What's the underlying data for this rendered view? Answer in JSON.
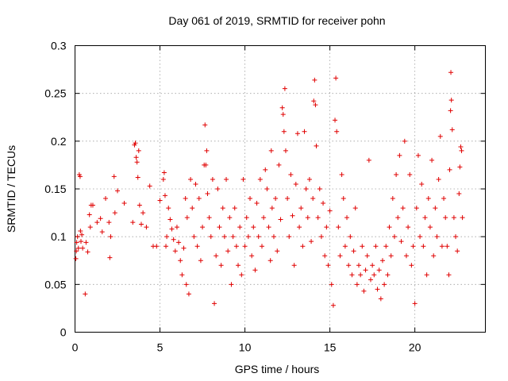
{
  "chart_data": {
    "type": "scatter",
    "title": "Day 061 of 2019, SRMTID for receiver pohn",
    "xlabel": "GPS time / hours",
    "ylabel": "SRMTID / TECUs",
    "xlim": [
      0,
      24.15
    ],
    "ylim": [
      0,
      0.3
    ],
    "x_ticks": [
      0,
      5,
      10,
      15,
      20
    ],
    "y_ticks": [
      0,
      0.05,
      0.1,
      0.15,
      0.2,
      0.25,
      0.3
    ],
    "x_tick_labels": [
      "0",
      "5",
      "10",
      "15",
      "20"
    ],
    "y_tick_labels": [
      "0",
      "0.05",
      "0.1",
      "0.15",
      "0.2",
      "0.25",
      "0.3"
    ],
    "grid": true,
    "legend": "none",
    "marker": "+",
    "series": [
      {
        "name": "SRMTID",
        "color": "#e00000",
        "points": [
          [
            0.05,
            0.077
          ],
          [
            0.08,
            0.085
          ],
          [
            0.1,
            0.094
          ],
          [
            0.15,
            0.1
          ],
          [
            0.2,
            0.088
          ],
          [
            0.25,
            0.165
          ],
          [
            0.3,
            0.163
          ],
          [
            0.32,
            0.106
          ],
          [
            0.35,
            0.095
          ],
          [
            0.4,
            0.102
          ],
          [
            0.45,
            0.088
          ],
          [
            0.6,
            0.04
          ],
          [
            0.65,
            0.094
          ],
          [
            0.75,
            0.084
          ],
          [
            0.85,
            0.123
          ],
          [
            0.9,
            0.11
          ],
          [
            0.95,
            0.133
          ],
          [
            1.05,
            0.133
          ],
          [
            1.3,
            0.115
          ],
          [
            1.5,
            0.119
          ],
          [
            1.6,
            0.105
          ],
          [
            1.8,
            0.14
          ],
          [
            2.0,
            0.115
          ],
          [
            2.05,
            0.078
          ],
          [
            2.1,
            0.1
          ],
          [
            2.3,
            0.163
          ],
          [
            2.35,
            0.125
          ],
          [
            2.5,
            0.148
          ],
          [
            2.9,
            0.135
          ],
          [
            3.4,
            0.115
          ],
          [
            3.5,
            0.196
          ],
          [
            3.55,
            0.198
          ],
          [
            3.6,
            0.183
          ],
          [
            3.65,
            0.178
          ],
          [
            3.7,
            0.162
          ],
          [
            3.75,
            0.19
          ],
          [
            3.8,
            0.133
          ],
          [
            3.9,
            0.113
          ],
          [
            4.0,
            0.125
          ],
          [
            4.2,
            0.11
          ],
          [
            4.4,
            0.153
          ],
          [
            4.6,
            0.09
          ],
          [
            4.8,
            0.09
          ],
          [
            5.0,
            0.138
          ],
          [
            5.2,
            0.16
          ],
          [
            5.25,
            0.167
          ],
          [
            5.3,
            0.143
          ],
          [
            5.35,
            0.09
          ],
          [
            5.4,
            0.1
          ],
          [
            5.5,
            0.13
          ],
          [
            5.6,
            0.118
          ],
          [
            5.7,
            0.108
          ],
          [
            5.8,
            0.097
          ],
          [
            5.9,
            0.085
          ],
          [
            6.0,
            0.11
          ],
          [
            6.1,
            0.094
          ],
          [
            6.2,
            0.075
          ],
          [
            6.3,
            0.06
          ],
          [
            6.4,
            0.088
          ],
          [
            6.5,
            0.14
          ],
          [
            6.55,
            0.05
          ],
          [
            6.6,
            0.12
          ],
          [
            6.7,
            0.04
          ],
          [
            6.8,
            0.16
          ],
          [
            6.9,
            0.13
          ],
          [
            7.0,
            0.1
          ],
          [
            7.1,
            0.155
          ],
          [
            7.2,
            0.09
          ],
          [
            7.3,
            0.14
          ],
          [
            7.4,
            0.075
          ],
          [
            7.5,
            0.11
          ],
          [
            7.6,
            0.175
          ],
          [
            7.65,
            0.217
          ],
          [
            7.7,
            0.175
          ],
          [
            7.75,
            0.19
          ],
          [
            7.8,
            0.145
          ],
          [
            7.9,
            0.12
          ],
          [
            8.0,
            0.1
          ],
          [
            8.1,
            0.16
          ],
          [
            8.2,
            0.03
          ],
          [
            8.3,
            0.08
          ],
          [
            8.4,
            0.15
          ],
          [
            8.5,
            0.11
          ],
          [
            8.6,
            0.07
          ],
          [
            8.7,
            0.13
          ],
          [
            8.8,
            0.1
          ],
          [
            8.9,
            0.16
          ],
          [
            9.0,
            0.085
          ],
          [
            9.1,
            0.12
          ],
          [
            9.2,
            0.05
          ],
          [
            9.3,
            0.1
          ],
          [
            9.4,
            0.13
          ],
          [
            9.5,
            0.09
          ],
          [
            9.6,
            0.07
          ],
          [
            9.7,
            0.11
          ],
          [
            9.8,
            0.06
          ],
          [
            9.9,
            0.16
          ],
          [
            10.0,
            0.09
          ],
          [
            10.1,
            0.12
          ],
          [
            10.2,
            0.1
          ],
          [
            10.3,
            0.14
          ],
          [
            10.4,
            0.08
          ],
          [
            10.5,
            0.11
          ],
          [
            10.6,
            0.065
          ],
          [
            10.7,
            0.135
          ],
          [
            10.8,
            0.1
          ],
          [
            10.9,
            0.16
          ],
          [
            11.0,
            0.09
          ],
          [
            11.1,
            0.12
          ],
          [
            11.2,
            0.17
          ],
          [
            11.3,
            0.15
          ],
          [
            11.4,
            0.11
          ],
          [
            11.5,
            0.075
          ],
          [
            11.55,
            0.19
          ],
          [
            11.6,
            0.13
          ],
          [
            11.7,
            0.1
          ],
          [
            11.8,
            0.14
          ],
          [
            11.9,
            0.085
          ],
          [
            12.0,
            0.175
          ],
          [
            12.1,
            0.118
          ],
          [
            12.2,
            0.235
          ],
          [
            12.25,
            0.228
          ],
          [
            12.3,
            0.21
          ],
          [
            12.35,
            0.255
          ],
          [
            12.4,
            0.19
          ],
          [
            12.5,
            0.14
          ],
          [
            12.6,
            0.1
          ],
          [
            12.7,
            0.165
          ],
          [
            12.8,
            0.122
          ],
          [
            12.9,
            0.07
          ],
          [
            13.0,
            0.155
          ],
          [
            13.1,
            0.208
          ],
          [
            13.2,
            0.11
          ],
          [
            13.3,
            0.13
          ],
          [
            13.4,
            0.09
          ],
          [
            13.5,
            0.21
          ],
          [
            13.6,
            0.15
          ],
          [
            13.7,
            0.12
          ],
          [
            13.8,
            0.16
          ],
          [
            13.9,
            0.095
          ],
          [
            14.0,
            0.14
          ],
          [
            14.05,
            0.242
          ],
          [
            14.1,
            0.264
          ],
          [
            14.15,
            0.238
          ],
          [
            14.2,
            0.195
          ],
          [
            14.3,
            0.12
          ],
          [
            14.4,
            0.15
          ],
          [
            14.5,
            0.1
          ],
          [
            14.6,
            0.135
          ],
          [
            14.7,
            0.08
          ],
          [
            14.8,
            0.11
          ],
          [
            14.9,
            0.07
          ],
          [
            15.0,
            0.127
          ],
          [
            15.1,
            0.05
          ],
          [
            15.2,
            0.028
          ],
          [
            15.3,
            0.222
          ],
          [
            15.35,
            0.266
          ],
          [
            15.4,
            0.21
          ],
          [
            15.5,
            0.11
          ],
          [
            15.6,
            0.08
          ],
          [
            15.7,
            0.165
          ],
          [
            15.8,
            0.14
          ],
          [
            15.9,
            0.09
          ],
          [
            16.0,
            0.12
          ],
          [
            16.1,
            0.07
          ],
          [
            16.2,
            0.1
          ],
          [
            16.3,
            0.06
          ],
          [
            16.4,
            0.085
          ],
          [
            16.5,
            0.13
          ],
          [
            16.6,
            0.05
          ],
          [
            16.7,
            0.07
          ],
          [
            16.8,
            0.06
          ],
          [
            16.9,
            0.09
          ],
          [
            17.0,
            0.043
          ],
          [
            17.1,
            0.065
          ],
          [
            17.2,
            0.08
          ],
          [
            17.3,
            0.18
          ],
          [
            17.4,
            0.055
          ],
          [
            17.5,
            0.07
          ],
          [
            17.6,
            0.06
          ],
          [
            17.7,
            0.09
          ],
          [
            17.8,
            0.045
          ],
          [
            17.9,
            0.065
          ],
          [
            18.0,
            0.035
          ],
          [
            18.1,
            0.075
          ],
          [
            18.2,
            0.05
          ],
          [
            18.3,
            0.09
          ],
          [
            18.4,
            0.06
          ],
          [
            18.5,
            0.11
          ],
          [
            18.6,
            0.08
          ],
          [
            18.7,
            0.14
          ],
          [
            18.8,
            0.1
          ],
          [
            18.9,
            0.165
          ],
          [
            19.0,
            0.12
          ],
          [
            19.1,
            0.185
          ],
          [
            19.2,
            0.095
          ],
          [
            19.3,
            0.13
          ],
          [
            19.4,
            0.2
          ],
          [
            19.5,
            0.08
          ],
          [
            19.6,
            0.11
          ],
          [
            19.7,
            0.165
          ],
          [
            19.8,
            0.07
          ],
          [
            19.9,
            0.09
          ],
          [
            20.0,
            0.03
          ],
          [
            20.1,
            0.13
          ],
          [
            20.2,
            0.185
          ],
          [
            20.3,
            0.1
          ],
          [
            20.4,
            0.155
          ],
          [
            20.5,
            0.09
          ],
          [
            20.6,
            0.12
          ],
          [
            20.7,
            0.06
          ],
          [
            20.8,
            0.14
          ],
          [
            20.9,
            0.11
          ],
          [
            21.0,
            0.18
          ],
          [
            21.1,
            0.08
          ],
          [
            21.2,
            0.13
          ],
          [
            21.3,
            0.1
          ],
          [
            21.4,
            0.16
          ],
          [
            21.5,
            0.205
          ],
          [
            21.6,
            0.09
          ],
          [
            21.7,
            0.14
          ],
          [
            21.8,
            0.12
          ],
          [
            21.9,
            0.09
          ],
          [
            22.0,
            0.06
          ],
          [
            22.05,
            0.17
          ],
          [
            22.1,
            0.232
          ],
          [
            22.12,
            0.272
          ],
          [
            22.15,
            0.243
          ],
          [
            22.2,
            0.212
          ],
          [
            22.3,
            0.12
          ],
          [
            22.4,
            0.1
          ],
          [
            22.5,
            0.085
          ],
          [
            22.6,
            0.145
          ],
          [
            22.65,
            0.173
          ],
          [
            22.7,
            0.194
          ],
          [
            22.75,
            0.19
          ],
          [
            22.8,
            0.12
          ]
        ]
      }
    ]
  }
}
